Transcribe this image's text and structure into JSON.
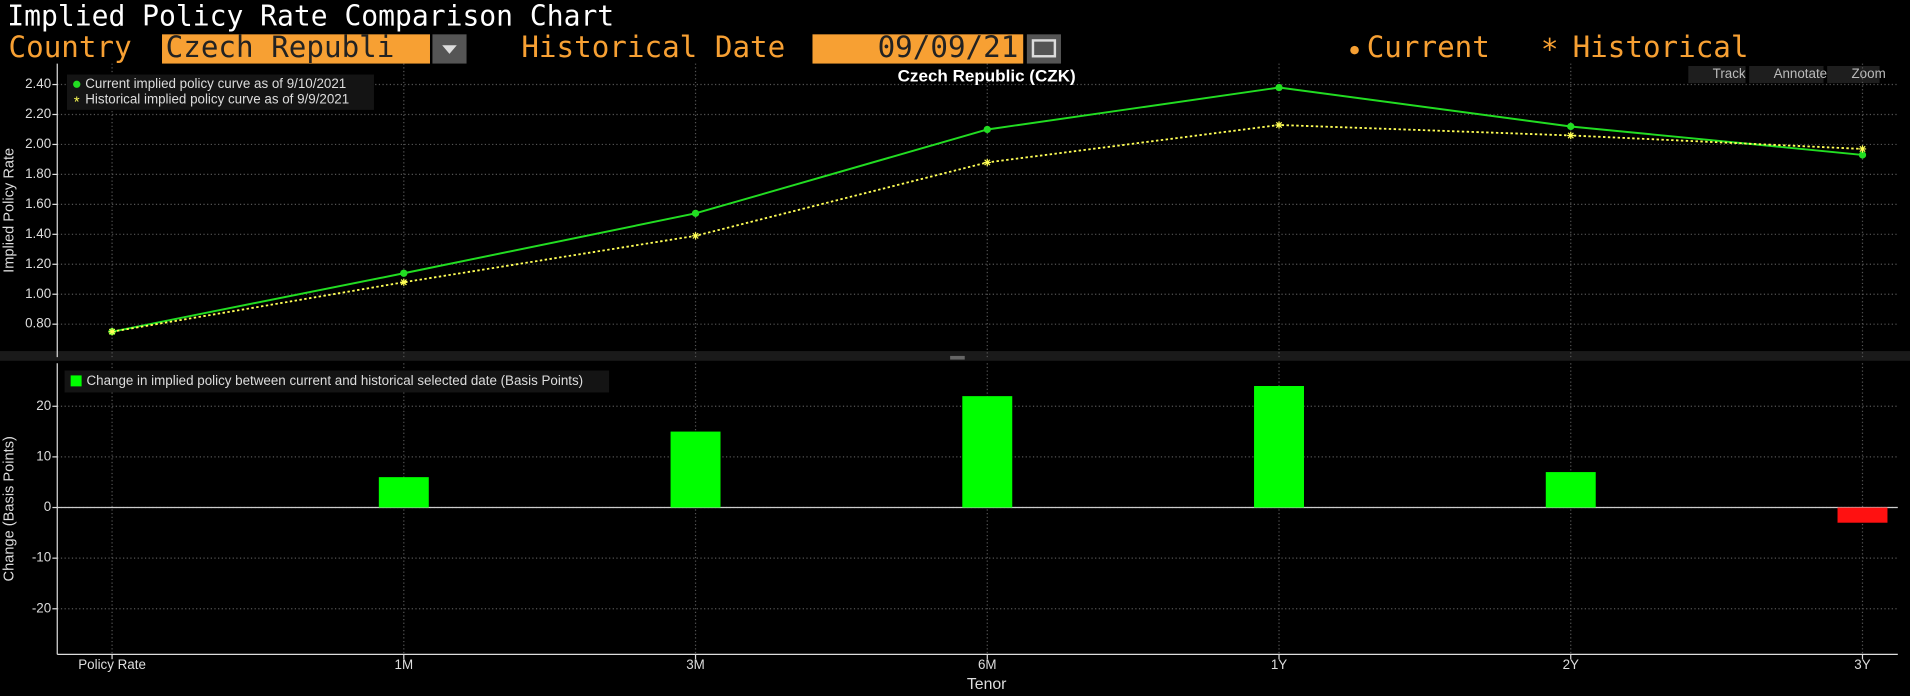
{
  "header": {
    "title": "Implied Policy Rate Comparison Chart",
    "country_label": "Country",
    "country_value": "Czech Republi",
    "date_label": "Historical Date",
    "date_value": "09/09/21",
    "legend_current": "Current",
    "legend_historical": "Historical"
  },
  "toolbar": [
    "Track",
    "Annotate",
    "Zoom"
  ],
  "chart_data": [
    {
      "type": "line",
      "title": "Czech Republic (CZK)",
      "ylabel": "Implied Policy Rate",
      "ylim": [
        0.58,
        2.54
      ],
      "yticks": [
        {
          "value": 0.8,
          "label": "0.80"
        },
        {
          "value": 1.0,
          "label": "1.00"
        },
        {
          "value": 1.2,
          "label": "1.20"
        },
        {
          "value": 1.4,
          "label": "1.40"
        },
        {
          "value": 1.6,
          "label": "1.60"
        },
        {
          "value": 1.8,
          "label": "1.80"
        },
        {
          "value": 2.0,
          "label": "2.00"
        },
        {
          "value": 2.2,
          "label": "2.20"
        },
        {
          "value": 2.4,
          "label": "2.40"
        }
      ],
      "grid": true,
      "series": [
        {
          "name": "Current implied policy curve as of 9/10/2021",
          "color": "#22dd22",
          "marker": "circle",
          "dashed": false,
          "values": [
            0.75,
            1.14,
            1.54,
            2.1,
            2.38,
            2.12,
            1.93
          ]
        },
        {
          "name": "Historical implied policy curve as of 9/9/2021",
          "color": "#ffff55",
          "marker": "star",
          "dashed": true,
          "values": [
            0.75,
            1.08,
            1.39,
            1.88,
            2.13,
            2.06,
            1.97
          ]
        }
      ]
    },
    {
      "type": "bar",
      "xlabel": "Tenor",
      "ylabel": "Change (Basis Points)",
      "categories": [
        "Policy Rate",
        "1M",
        "3M",
        "6M",
        "1Y",
        "2Y",
        "3Y"
      ],
      "ylim": [
        -29,
        28.5
      ],
      "yticks": [
        -20,
        -10,
        0,
        10,
        20
      ],
      "grid": true,
      "series": [
        {
          "name": "Change in implied policy between current and historical selected date (Basis Points)",
          "color": "#00ff00",
          "negative_color": "#ff1111",
          "values": [
            0,
            6,
            15,
            22,
            24,
            7,
            -3
          ]
        }
      ]
    }
  ]
}
